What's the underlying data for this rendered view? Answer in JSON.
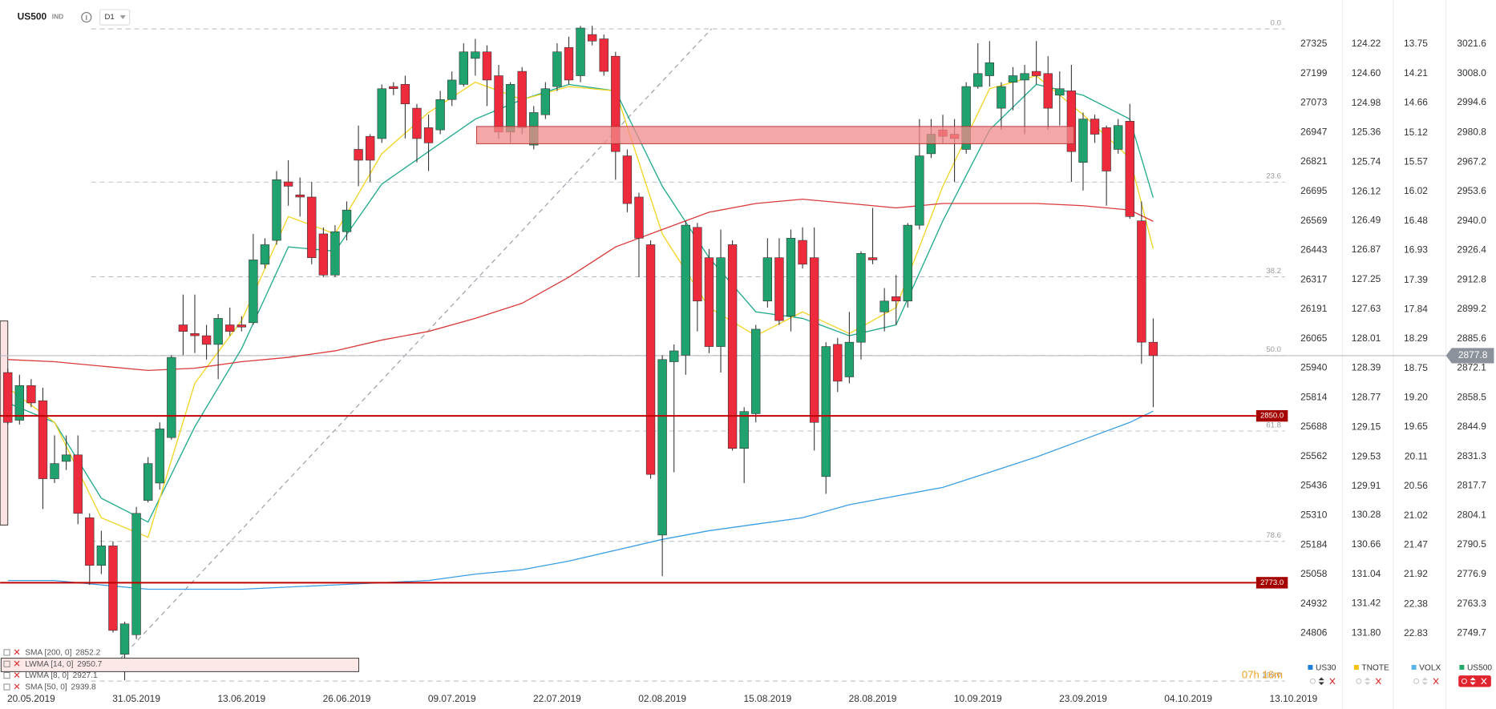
{
  "header": {
    "symbol": "US500",
    "badge": "IND",
    "timeframe": "D1"
  },
  "chart_data": {
    "type": "candlestick",
    "categories": [
      null,
      null,
      "20.05.2019",
      null,
      null,
      null,
      null,
      null,
      null,
      null,
      null,
      "31.05.2019",
      null,
      null,
      null,
      null,
      null,
      null,
      null,
      null,
      "13.06.2019",
      null,
      null,
      null,
      null,
      null,
      null,
      null,
      null,
      "26.06.2019",
      null,
      null,
      null,
      null,
      null,
      null,
      null,
      null,
      "09.07.2019",
      null,
      null,
      null,
      null,
      null,
      null,
      null,
      null,
      "22.07.2019",
      null,
      null,
      null,
      null,
      null,
      null,
      null,
      null,
      "02.08.2019",
      null,
      null,
      null,
      null,
      null,
      null,
      null,
      null,
      "15.08.2019",
      null,
      null,
      null,
      null,
      null,
      null,
      null,
      null,
      "28.08.2019",
      null,
      null,
      null,
      null,
      null,
      null,
      null,
      null,
      "10.09.2019",
      null,
      null,
      null,
      null,
      null,
      null,
      null,
      null,
      "23.09.2019",
      null,
      null,
      null,
      null,
      null,
      null,
      null,
      null,
      "04.10.2019",
      null,
      null,
      null,
      null,
      null,
      null,
      null,
      null,
      "13.10.2019"
    ],
    "open": [
      2870,
      2848,
      2864,
      2857,
      2821,
      2829,
      2832,
      2803,
      2781,
      2790,
      2740,
      2749,
      2811,
      2819,
      2840,
      2892,
      2888,
      2887,
      2883,
      2892,
      2892,
      2893,
      2920,
      2931,
      2958,
      2952,
      2951,
      2934,
      2915,
      2935,
      2973,
      2979,
      2978,
      3002,
      3003,
      2992,
      2983,
      2982,
      2996,
      3003,
      3015,
      3018,
      3007,
      2981,
      3009,
      2975,
      2989,
      3002,
      3020,
      3007,
      3026,
      3024,
      3016,
      2970,
      2951,
      2929,
      2795,
      2875,
      2878,
      2937,
      2923,
      2882,
      2929,
      2835,
      2851,
      2903,
      2923,
      2896,
      2931,
      2923,
      2822,
      2883,
      2868,
      2884,
      2923,
      2898,
      2905,
      2903,
      2938,
      2971,
      2982,
      2980,
      2973,
      3002,
      3007,
      2992,
      3004,
      3005,
      3009,
      3008,
      2998,
      3000,
      2967,
      2987,
      2983,
      2973,
      2986,
      2940,
      2884,
      null,
      null,
      null,
      null,
      null,
      null,
      null,
      null,
      null,
      null,
      null,
      null
    ],
    "high": [
      2872,
      2869,
      2867,
      2863,
      2841,
      2841,
      2841,
      2805,
      2797,
      2792,
      2755,
      2808,
      2831,
      2847,
      2878,
      2906,
      2906,
      2892,
      2897,
      2900,
      2896,
      2934,
      2932,
      2963,
      2968,
      2960,
      2958,
      2937,
      2938,
      2949,
      2984,
      2980,
      3003,
      3004,
      3007,
      2994,
      2989,
      3000,
      3009,
      3022,
      3024,
      3021,
      3012,
      3004,
      3011,
      2993,
      3004,
      3022,
      3025,
      3030,
      3030,
      3026,
      3018,
      2973,
      2953,
      2931,
      2878,
      2883,
      2940,
      2939,
      2927,
      2936,
      2931,
      2854,
      2892,
      2932,
      2932,
      2936,
      2937,
      2937,
      2884,
      2886,
      2898,
      2926,
      2946,
      2909,
      2915,
      2939,
      2987,
      2987,
      2989,
      2987,
      3004,
      3022,
      3023,
      3004,
      3011,
      3012,
      3023,
      3016,
      3009,
      3012,
      2990,
      2989,
      2984,
      2987,
      2994,
      2949,
      2895,
      null,
      null,
      null,
      null,
      null,
      null,
      null,
      null,
      null,
      null,
      null,
      null
    ],
    "low": [
      2846,
      2846,
      2854,
      2807,
      2819,
      2825,
      2800,
      2772,
      2777,
      2750,
      2728,
      2747,
      2810,
      2816,
      2839,
      2878,
      2879,
      2876,
      2867,
      2887,
      2889,
      2892,
      2918,
      2929,
      2947,
      2942,
      2920,
      2914,
      2914,
      2931,
      2956,
      2958,
      2976,
      2998,
      2978,
      2967,
      2963,
      2980,
      2993,
      3002,
      3007,
      2993,
      2978,
      2976,
      2980,
      2973,
      2987,
      3000,
      3003,
      3004,
      3021,
      3007,
      2959,
      2944,
      2914,
      2821,
      2776,
      2824,
      2869,
      2889,
      2879,
      2870,
      2834,
      2819,
      2847,
      2900,
      2892,
      2889,
      2918,
      2834,
      2814,
      2861,
      2865,
      2876,
      2920,
      2889,
      2892,
      2900,
      2936,
      2969,
      2976,
      2958,
      2971,
      3001,
      3002,
      2982,
      2991,
      2980,
      3003,
      2982,
      2984,
      2958,
      2954,
      2976,
      2947,
      2971,
      2941,
      2874,
      2854,
      null,
      null,
      null,
      null,
      null,
      null,
      null,
      null,
      null,
      null,
      null,
      null
    ],
    "close": [
      2847,
      2864,
      2856,
      2821,
      2828,
      2832,
      2805,
      2781,
      2790,
      2751,
      2754,
      2805,
      2828,
      2844,
      2877,
      2889,
      2887,
      2883,
      2895,
      2889,
      2891,
      2922,
      2929,
      2959,
      2956,
      2951,
      2923,
      2915,
      2935,
      2945,
      2968,
      2968,
      3001,
      3001,
      2994,
      2978,
      2976,
      2996,
      3005,
      3018,
      3018,
      3005,
      2981,
      3003,
      2983,
      2990,
      3001,
      3018,
      3005,
      3029,
      3023,
      3009,
      2972,
      2948,
      2932,
      2823,
      2876,
      2880,
      2938,
      2903,
      2882,
      2923,
      2835,
      2852,
      2890,
      2923,
      2894,
      2932,
      2920,
      2847,
      2882,
      2866,
      2884,
      2925,
      2922,
      2903,
      2903,
      2938,
      2970,
      2980,
      2979,
      2978,
      3002,
      3008,
      3013,
      3002,
      3007,
      3008,
      3007,
      2992,
      3001,
      2972,
      2987,
      2980,
      2963,
      2984,
      2942,
      2884,
      2877.8,
      null,
      null,
      null,
      null,
      null,
      null,
      null,
      null,
      null,
      null,
      null,
      null
    ],
    "up_color": "#1fa26e",
    "down_color": "#ee2a3d",
    "ylim": [
      2727.1,
      3033.1
    ],
    "axis_name": "US500",
    "axis_color": "#22a86b",
    "yticks": [
      3021.6,
      {
        "value": 3008,
        "label": "3008.0"
      },
      2994.6,
      2980.8,
      2967.2,
      2953.6,
      {
        "value": 2940,
        "label": "2940.0"
      },
      2926.4,
      2912.8,
      2899.2,
      2885.6,
      2872.1,
      2858.5,
      2844.9,
      2831.3,
      2817.7,
      2804.1,
      2790.5,
      2776.9,
      2763.3,
      2749.7
    ],
    "secondary_axes": [
      {
        "name": "US30",
        "color": "#1e7fd8",
        "ylim": [
          24597,
          27431
        ],
        "yticks": [
          27325,
          27199,
          27073,
          26947,
          26821,
          26695,
          26569,
          26443,
          26317,
          26191,
          26065,
          25940,
          25814,
          25688,
          25562,
          25436,
          25310,
          25184,
          25058,
          24932,
          24806
        ]
      },
      {
        "name": "TNOTE",
        "color": "#f2c20c",
        "ylim": [
          132.43,
          123.9
        ],
        "yticks": [
          124.22,
          {
            "value": 124.6,
            "label": "124.60"
          },
          124.98,
          125.36,
          125.74,
          126.12,
          126.49,
          126.87,
          127.25,
          127.63,
          128.01,
          128.39,
          128.77,
          129.15,
          129.53,
          129.91,
          130.28,
          130.66,
          131.04,
          131.42,
          {
            "value": 131.8,
            "label": "131.80"
          }
        ]
      },
      {
        "name": "VOLX",
        "color": "#5ab4e8",
        "ylim": [
          23.58,
          13.37
        ],
        "yticks": [
          13.75,
          14.21,
          14.66,
          15.12,
          15.57,
          16.02,
          16.48,
          16.93,
          17.39,
          17.84,
          18.29,
          18.75,
          {
            "value": 19.2,
            "label": "19.20"
          },
          19.65,
          20.11,
          20.56,
          21.02,
          21.47,
          21.92,
          22.38,
          22.83
        ]
      }
    ],
    "indicators": [
      {
        "name": "SMA [200, 0]",
        "color": "#3a9ee4",
        "x": [
          0,
          4,
          8,
          12,
          16,
          20,
          24,
          28,
          32,
          36,
          40,
          44,
          48,
          52,
          56,
          60,
          64,
          68,
          72,
          76,
          80,
          84,
          88,
          92,
          96,
          98
        ],
        "values": [
          2774,
          2774,
          2772,
          2770,
          2770,
          2770,
          2771,
          2772,
          2773,
          2774,
          2777,
          2779,
          2783,
          2788,
          2793,
          2797,
          2800,
          2803,
          2809,
          2813,
          2817,
          2824,
          2831,
          2839,
          2847,
          2852.2
        ]
      },
      {
        "name": "LWMA [14, 0]",
        "color": "#1fa98c",
        "x": [
          0,
          4,
          8,
          12,
          16,
          20,
          24,
          28,
          32,
          36,
          40,
          44,
          48,
          52,
          56,
          60,
          64,
          68,
          72,
          76,
          80,
          84,
          88,
          92,
          96,
          98
        ],
        "values": [
          2856,
          2847,
          2812,
          2801,
          2845,
          2881,
          2928,
          2926,
          2957,
          2972,
          2987,
          2996,
          3003,
          3000,
          2956,
          2923,
          2898,
          2895,
          2887,
          2892,
          2940,
          2982,
          3003,
          2998,
          2987,
          2950.7
        ]
      },
      {
        "name": "LWMA [8, 0]",
        "color": "#f2d422",
        "x": [
          0,
          4,
          8,
          12,
          16,
          20,
          24,
          28,
          32,
          36,
          40,
          44,
          48,
          52,
          56,
          60,
          64,
          68,
          72,
          76,
          80,
          84,
          88,
          92,
          96,
          98
        ],
        "values": [
          2863,
          2847,
          2803,
          2794,
          2865,
          2894,
          2942,
          2934,
          2971,
          2990,
          3004,
          2996,
          3002,
          3000,
          2934,
          2900,
          2887,
          2898,
          2888,
          2900,
          2956,
          3001,
          3007,
          2989,
          2969,
          2927.1
        ]
      },
      {
        "name": "SMA [50, 0]",
        "color": "#d93a3a",
        "x": [
          0,
          4,
          8,
          12,
          16,
          20,
          24,
          28,
          32,
          36,
          40,
          44,
          48,
          52,
          56,
          60,
          64,
          68,
          72,
          76,
          80,
          84,
          88,
          92,
          96,
          98
        ],
        "values": [
          2876,
          2875,
          2873,
          2871,
          2872,
          2875,
          2877,
          2880,
          2885,
          2889,
          2895,
          2902,
          2914,
          2928,
          2936,
          2944,
          2948,
          2950,
          2948,
          2946,
          2948,
          2948,
          2948,
          2947,
          2945,
          2939.8
        ]
      }
    ],
    "levels": [
      {
        "value": 2850,
        "label": "2850.0"
      },
      {
        "value": 2773,
        "label": "2773.0"
      }
    ],
    "fibonacci": [
      {
        "label": "0.0",
        "price": 3028.6
      },
      {
        "label": "23.6",
        "price": 2957.9
      },
      {
        "label": "38.2",
        "price": 2914.2
      },
      {
        "label": "50.0",
        "price": 2877.9
      },
      {
        "label": "61.8",
        "price": 2843.0
      },
      {
        "label": "78.6",
        "price": 2792.1
      },
      {
        "label": "100.0",
        "price": 2727.6
      }
    ],
    "countdown": "07h 16m"
  }
}
